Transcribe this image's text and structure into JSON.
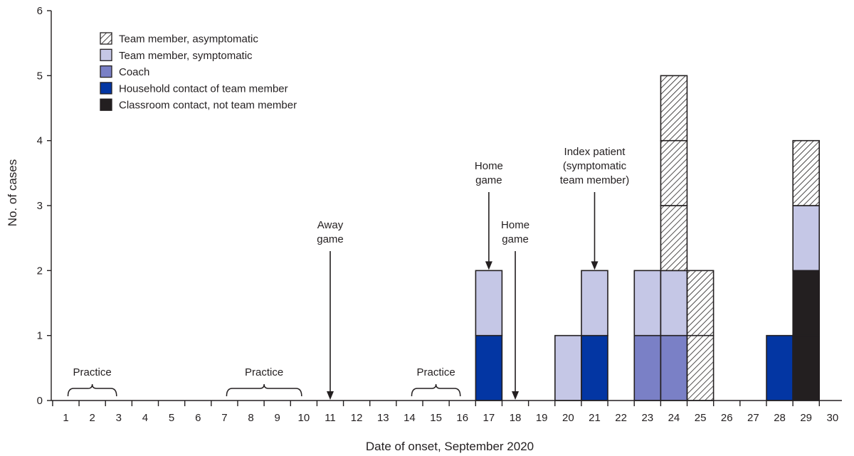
{
  "chart_data": {
    "type": "bar",
    "stacked": true,
    "xlabel": "Date of onset, September 2020",
    "ylabel": "No. of cases",
    "x_ticks": [
      1,
      2,
      3,
      4,
      5,
      6,
      7,
      8,
      9,
      10,
      11,
      12,
      13,
      14,
      15,
      16,
      17,
      18,
      19,
      20,
      21,
      22,
      23,
      24,
      25,
      26,
      27,
      28,
      29,
      30
    ],
    "y_ticks": [
      0,
      1,
      2,
      3,
      4,
      5,
      6
    ],
    "ylim": [
      0,
      6
    ],
    "grid": false,
    "legend_position": "top-left",
    "series": [
      {
        "name": "Team member, asymptomatic",
        "color": "#ffffff",
        "pattern": "hatch",
        "points": [
          {
            "x": 24,
            "value": 3
          },
          {
            "x": 25,
            "value": 2
          },
          {
            "x": 29,
            "value": 1
          }
        ]
      },
      {
        "name": "Team member, symptomatic",
        "color": "#c5c7e6",
        "points": [
          {
            "x": 17,
            "value": 1
          },
          {
            "x": 20,
            "value": 1
          },
          {
            "x": 21,
            "value": 1
          },
          {
            "x": 23,
            "value": 1
          },
          {
            "x": 24,
            "value": 1
          },
          {
            "x": 29,
            "value": 1
          }
        ]
      },
      {
        "name": "Coach",
        "color": "#7a80c6",
        "points": [
          {
            "x": 23,
            "value": 1
          },
          {
            "x": 24,
            "value": 1
          }
        ]
      },
      {
        "name": "Household contact of team member",
        "color": "#0336a3",
        "points": [
          {
            "x": 17,
            "value": 1
          },
          {
            "x": 21,
            "value": 1
          },
          {
            "x": 28,
            "value": 1
          }
        ]
      },
      {
        "name": "Classroom contact, not team member",
        "color": "#231f20",
        "points": [
          {
            "x": 29,
            "value": 2
          }
        ]
      }
    ],
    "stack_order": [
      "Household contact of team member",
      "Coach",
      "Classroom contact, not team member",
      "Team member, symptomatic",
      "Team member, asymptomatic"
    ],
    "annotations": [
      {
        "kind": "arrow",
        "x": 11,
        "to_value": 0,
        "lines": [
          "Away",
          "game"
        ]
      },
      {
        "kind": "arrow",
        "x": 17,
        "to_value": 2,
        "lines": [
          "Home",
          "game"
        ]
      },
      {
        "kind": "arrow",
        "x": 18,
        "to_value": 0,
        "lines": [
          "Home",
          "game"
        ]
      },
      {
        "kind": "arrow",
        "x": 21,
        "to_value": 2,
        "lines": [
          "Index patient",
          "(symptomatic",
          "team member)"
        ]
      },
      {
        "kind": "brace",
        "from": 1,
        "to": 3,
        "label": "Practice"
      },
      {
        "kind": "brace",
        "from": 7,
        "to": 10,
        "label": "Practice"
      },
      {
        "kind": "brace",
        "from": 14,
        "to": 16,
        "label": "Practice"
      }
    ]
  }
}
